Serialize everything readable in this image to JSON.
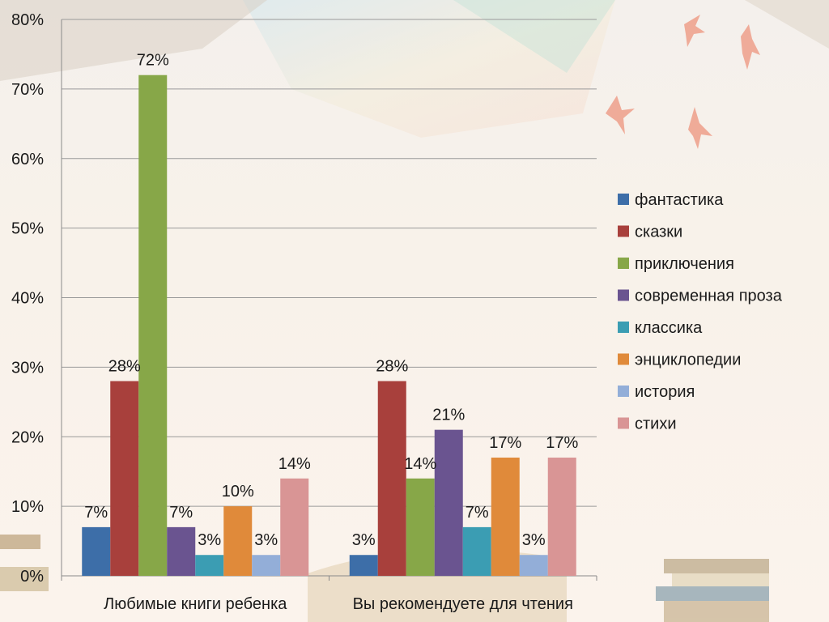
{
  "chart_data": {
    "type": "bar",
    "categories": [
      "Любимые книги ребенка",
      "Вы рекомендуете для чтения"
    ],
    "series": [
      {
        "name": "фантастика",
        "color": "#3d6ea8",
        "values": [
          7,
          3
        ],
        "labels": [
          "7%",
          "3%"
        ]
      },
      {
        "name": "сказки",
        "color": "#a8403c",
        "values": [
          28,
          28
        ],
        "labels": [
          "28%",
          "28%"
        ]
      },
      {
        "name": "приключения",
        "color": "#87a748",
        "values": [
          72,
          14
        ],
        "labels": [
          "72%",
          "14%"
        ]
      },
      {
        "name": "современная проза",
        "color": "#6a5490",
        "values": [
          7,
          21
        ],
        "labels": [
          "7%",
          "21%"
        ]
      },
      {
        "name": "классика",
        "color": "#3b9db3",
        "values": [
          3,
          7
        ],
        "labels": [
          "3%",
          "7%"
        ]
      },
      {
        "name": "энциклопедии",
        "color": "#e08a3a",
        "values": [
          10,
          17
        ],
        "labels": [
          "10%",
          "17%"
        ]
      },
      {
        "name": "история",
        "color": "#93aed8",
        "values": [
          3,
          3
        ],
        "labels": [
          "3%",
          "3%"
        ]
      },
      {
        "name": "стихи",
        "color": "#d99595",
        "values": [
          14,
          17
        ],
        "labels": [
          "14%",
          "17%"
        ]
      }
    ],
    "y_ticks": [
      "0%",
      "10%",
      "20%",
      "30%",
      "40%",
      "50%",
      "60%",
      "70%",
      "80%"
    ],
    "ylim": [
      0,
      80
    ],
    "grid": true,
    "legend_position": "right"
  }
}
